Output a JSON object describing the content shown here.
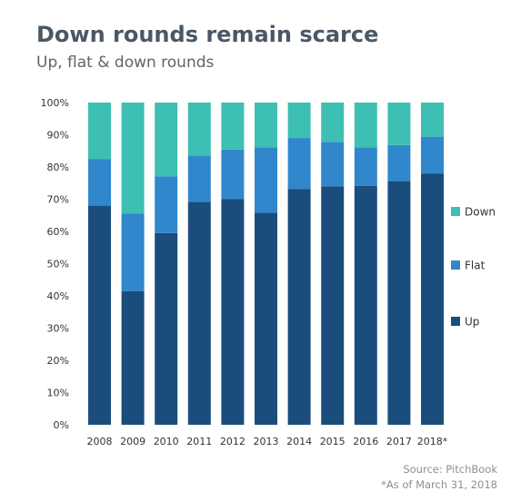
{
  "title": "Down rounds remain scarce",
  "subtitle": "Up, flat & down rounds",
  "source": "Source: PitchBook",
  "note": "*As of March 31, 2018",
  "colors": {
    "Up": "#1a4d7c",
    "Flat": "#3087cb",
    "Down": "#3ebfb3"
  },
  "chart_data": {
    "type": "bar",
    "stacked": true,
    "categories": [
      "2008",
      "2009",
      "2010",
      "2011",
      "2012",
      "2013",
      "2014",
      "2015",
      "2016",
      "2017",
      "2018*"
    ],
    "series": [
      {
        "name": "Up",
        "values": [
          68.0,
          41.5,
          59.5,
          69.2,
          70.0,
          65.8,
          73.2,
          74.0,
          74.1,
          75.6,
          78.0
        ]
      },
      {
        "name": "Flat",
        "values": [
          14.5,
          24.0,
          17.6,
          14.4,
          15.4,
          20.3,
          15.8,
          13.8,
          12.0,
          11.2,
          11.4
        ]
      },
      {
        "name": "Down",
        "values": [
          17.5,
          34.5,
          22.9,
          16.4,
          14.6,
          13.9,
          11.0,
          12.2,
          13.9,
          13.2,
          10.6
        ]
      }
    ],
    "yticks": [
      "0%",
      "10%",
      "20%",
      "30%",
      "40%",
      "50%",
      "60%",
      "70%",
      "80%",
      "90%",
      "100%"
    ],
    "ylim": [
      0,
      100
    ],
    "legend": [
      "Down",
      "Flat",
      "Up"
    ],
    "legend_position": "right"
  }
}
